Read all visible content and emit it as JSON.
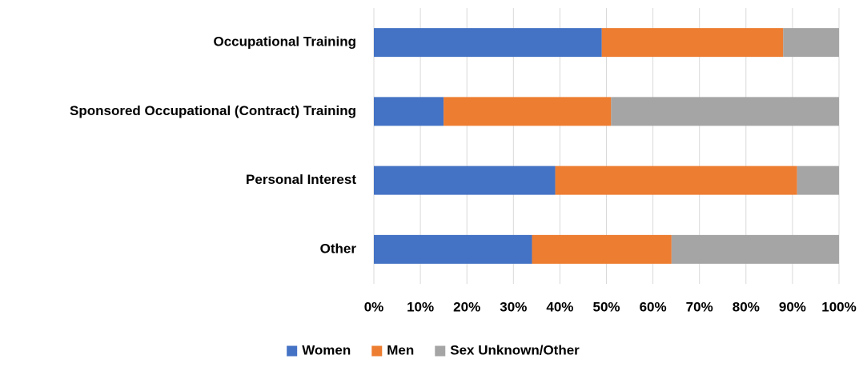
{
  "chart_data": {
    "type": "stacked-bar-horizontal",
    "categories": [
      "Occupational Training",
      "Sponsored Occupational (Contract) Training",
      "Personal Interest",
      "Other"
    ],
    "series": [
      {
        "name": "Women",
        "color": "#4472c4",
        "values": [
          49,
          15,
          39,
          34
        ]
      },
      {
        "name": "Men",
        "color": "#ed7d31",
        "values": [
          39,
          36,
          52,
          30
        ]
      },
      {
        "name": "Sex Unknown/Other",
        "color": "#a5a5a5",
        "values": [
          12,
          49,
          9,
          36
        ]
      }
    ],
    "xlim": [
      0,
      100
    ],
    "xticks": [
      {
        "value": 0,
        "label": "0%"
      },
      {
        "value": 10,
        "label": "10%"
      },
      {
        "value": 20,
        "label": "20%"
      },
      {
        "value": 30,
        "label": "30%"
      },
      {
        "value": 40,
        "label": "40%"
      },
      {
        "value": 50,
        "label": "50%"
      },
      {
        "value": 60,
        "label": "60%"
      },
      {
        "value": 70,
        "label": "70%"
      },
      {
        "value": 80,
        "label": "80%"
      },
      {
        "value": 90,
        "label": "90%"
      },
      {
        "value": 100,
        "label": "100%"
      }
    ],
    "grid": true,
    "legend": "bottom"
  }
}
